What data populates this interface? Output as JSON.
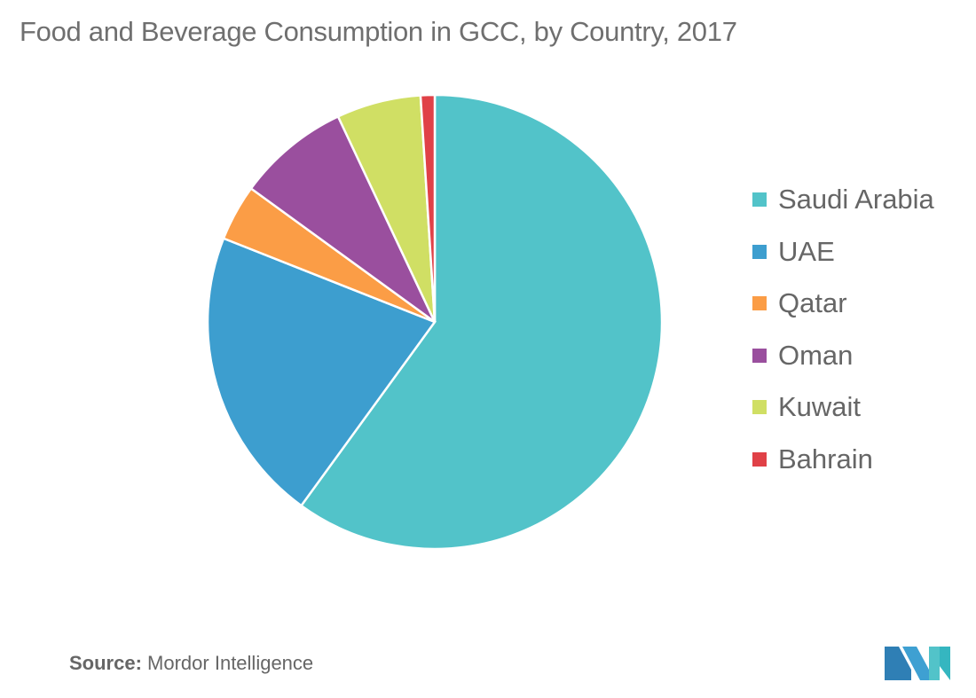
{
  "chart_data": {
    "type": "pie",
    "title": "Food and Beverage Consumption in GCC, by Country, 2017",
    "categories": [
      "Saudi Arabia",
      "UAE",
      "Qatar",
      "Oman",
      "Kuwait",
      "Bahrain"
    ],
    "values": [
      60,
      21,
      4,
      8,
      6,
      1
    ],
    "unit": "%",
    "colors": [
      "#52c3c9",
      "#3d9ecf",
      "#fb9d46",
      "#9a4f9e",
      "#d0df64",
      "#e04147"
    ],
    "legend_position": "right"
  },
  "source": {
    "label": "Source:",
    "text": "Mordor Intelligence"
  }
}
